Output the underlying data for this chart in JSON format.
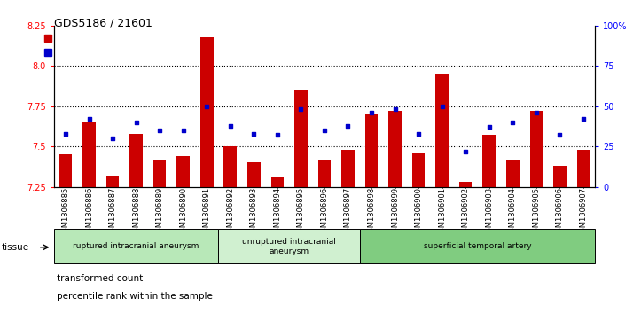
{
  "title": "GDS5186 / 21601",
  "samples": [
    "GSM1306885",
    "GSM1306886",
    "GSM1306887",
    "GSM1306888",
    "GSM1306889",
    "GSM1306890",
    "GSM1306891",
    "GSM1306892",
    "GSM1306893",
    "GSM1306894",
    "GSM1306895",
    "GSM1306896",
    "GSM1306897",
    "GSM1306898",
    "GSM1306899",
    "GSM1306900",
    "GSM1306901",
    "GSM1306902",
    "GSM1306903",
    "GSM1306904",
    "GSM1306905",
    "GSM1306906",
    "GSM1306907"
  ],
  "transformed_count": [
    7.45,
    7.65,
    7.32,
    7.58,
    7.42,
    7.44,
    8.18,
    7.5,
    7.4,
    7.31,
    7.85,
    7.42,
    7.48,
    7.7,
    7.72,
    7.46,
    7.95,
    7.28,
    7.57,
    7.42,
    7.72,
    7.38,
    7.48
  ],
  "percentile_rank": [
    33,
    42,
    30,
    40,
    35,
    35,
    50,
    38,
    33,
    32,
    48,
    35,
    38,
    46,
    48,
    33,
    50,
    22,
    37,
    40,
    46,
    32,
    42
  ],
  "ylim_left": [
    7.25,
    8.25
  ],
  "ylim_right": [
    0,
    100
  ],
  "yticks_left": [
    7.25,
    7.5,
    7.75,
    8.0,
    8.25
  ],
  "yticks_right": [
    0,
    25,
    50,
    75,
    100
  ],
  "ytick_labels_right": [
    "0",
    "25",
    "50",
    "75",
    "100%"
  ],
  "groups": [
    {
      "label": "ruptured intracranial aneurysm",
      "start": 0,
      "end": 6,
      "color": "#b8e8b8"
    },
    {
      "label": "unruptured intracranial\naneurysm",
      "start": 7,
      "end": 12,
      "color": "#d0f0d0"
    },
    {
      "label": "superficial temporal artery",
      "start": 13,
      "end": 22,
      "color": "#80cc80"
    }
  ],
  "bar_color": "#cc0000",
  "dot_color": "#0000cc",
  "bar_bottom": 7.25,
  "plot_bg": "#ffffff"
}
